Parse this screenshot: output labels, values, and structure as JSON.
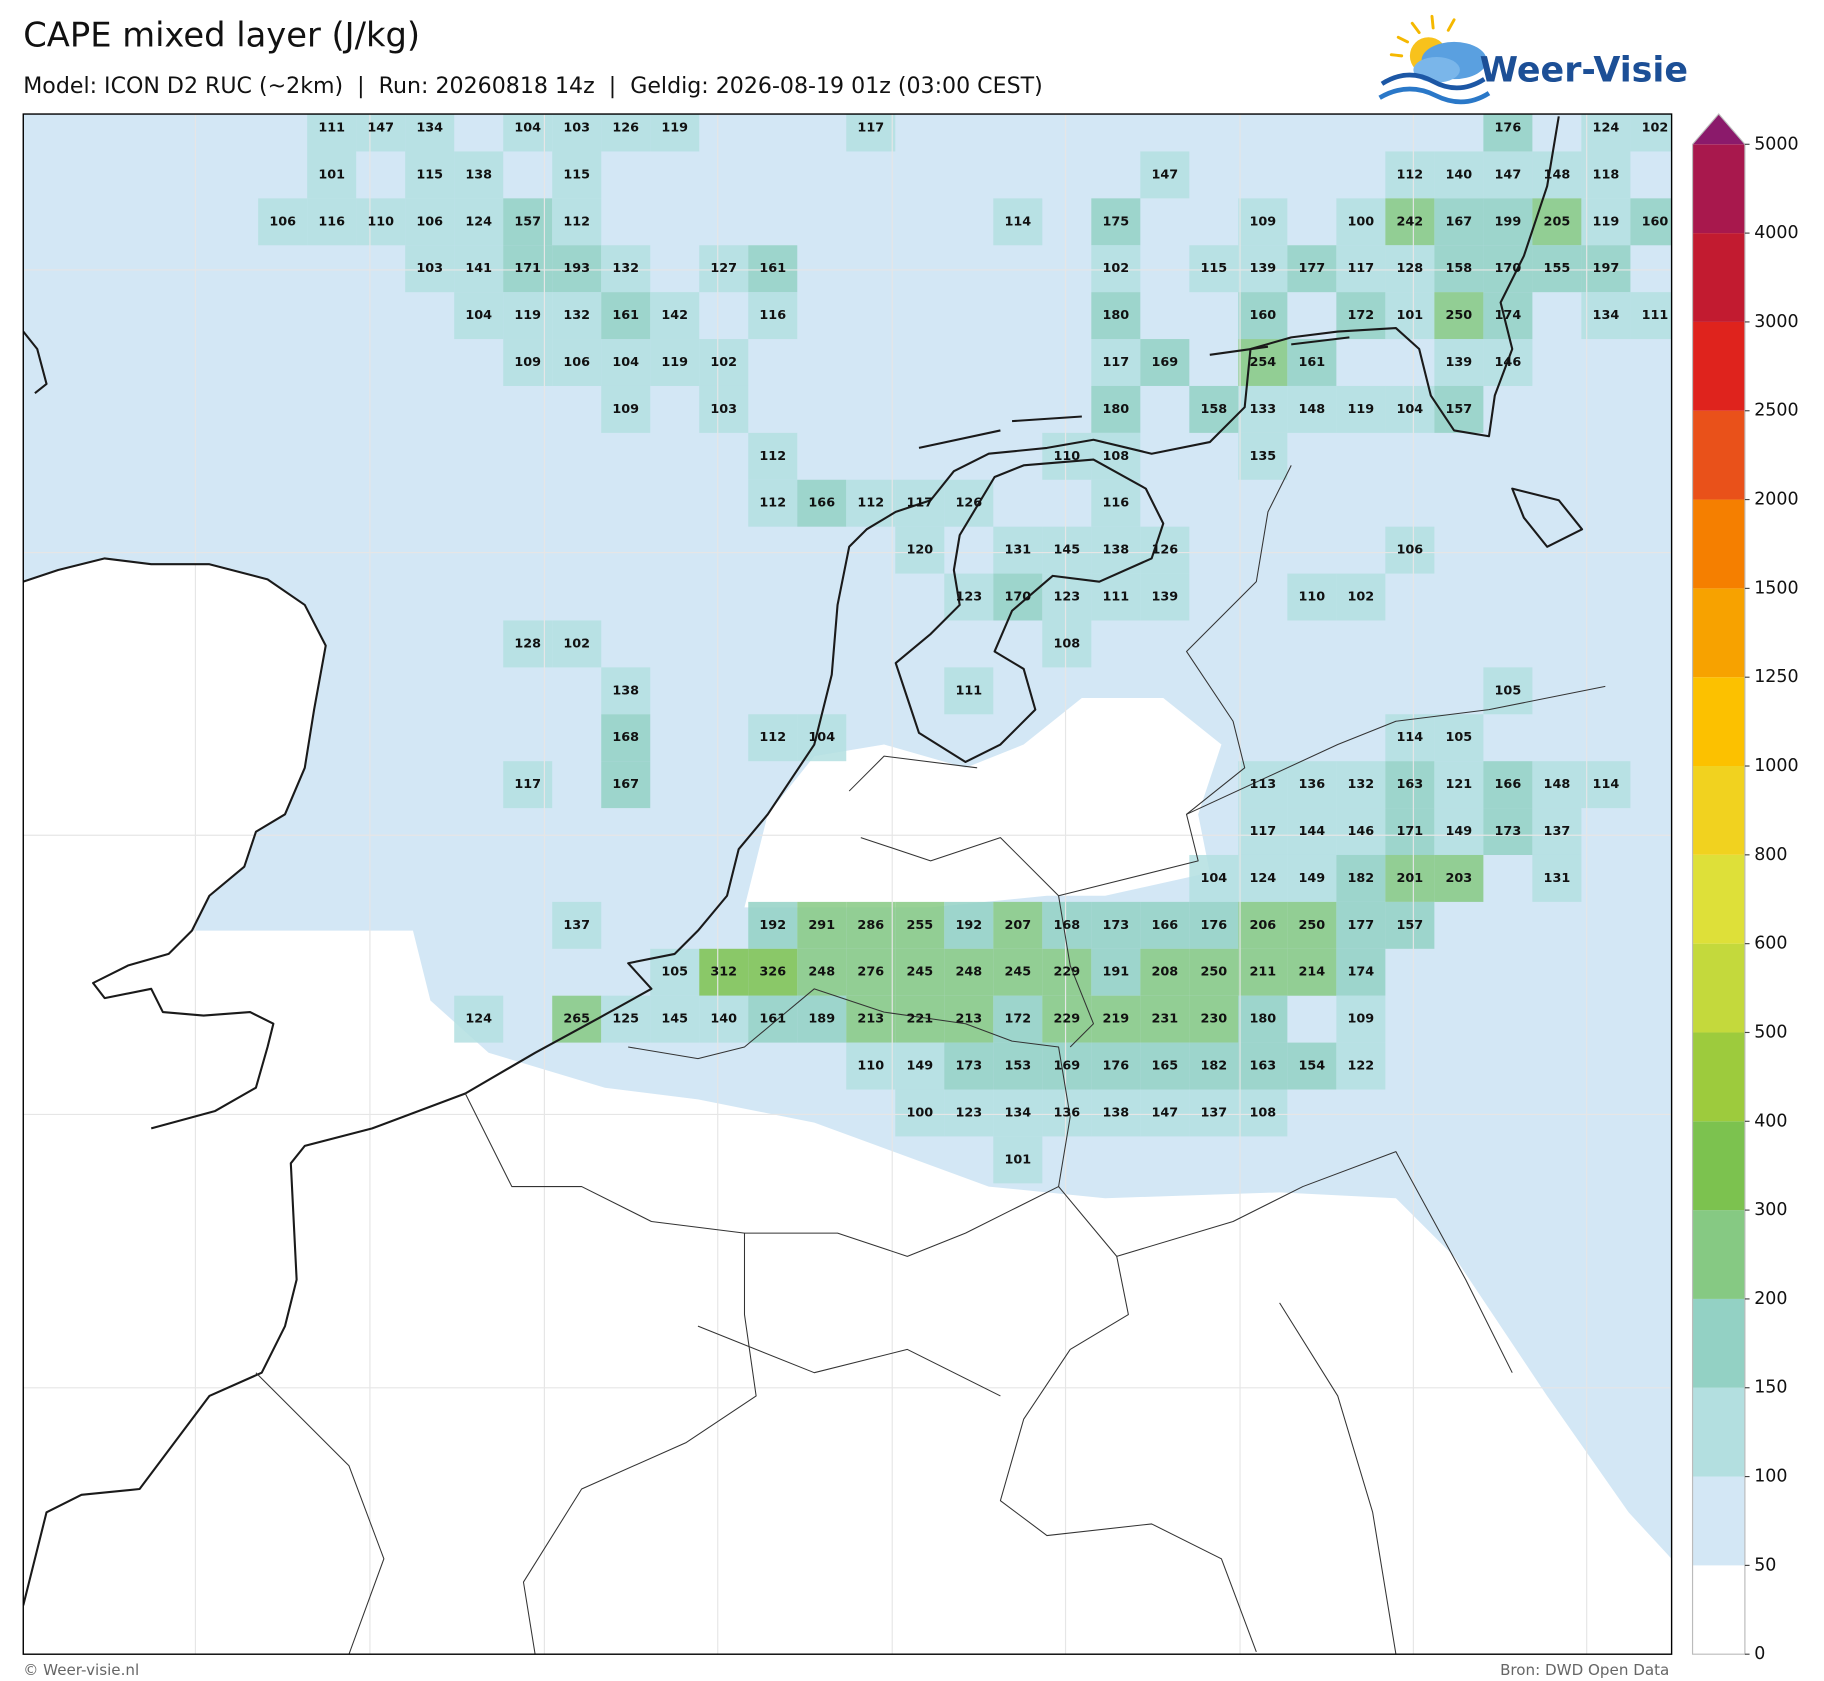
{
  "header": {
    "title": "CAPE mixed layer (J/kg)",
    "subtitle": "Model: ICON D2 RUC (~2km)  |  Run: 20260818 14z  |  Geldig: 2026-08-19 01z (03:00 CEST)"
  },
  "logo": "Weer-Visie",
  "colorbar": {
    "levels": [
      0,
      50,
      100,
      150,
      200,
      300,
      400,
      500,
      600,
      800,
      1000,
      1250,
      1500,
      2000,
      2500,
      3000,
      4000,
      5000
    ],
    "colors": [
      "#ffffff",
      "#d3e7f5",
      "#b3dfe0",
      "#93d1c4",
      "#86c983",
      "#7cc24f",
      "#9dcb3d",
      "#c4d93c",
      "#dee039",
      "#f1d21f",
      "#fcc100",
      "#f7a200",
      "#f57f00",
      "#e9511a",
      "#df231d",
      "#c21b30",
      "#a8184d"
    ],
    "extend_color": "#8b1a6b"
  },
  "map": {
    "grid": [
      [
        null,
        111,
        147,
        134,
        null,
        104,
        103,
        126,
        119,
        null,
        null,
        null,
        117,
        null,
        null,
        null,
        null,
        null,
        null,
        null,
        null,
        null,
        null,
        null,
        null,
        176,
        null,
        124,
        102
      ],
      [
        null,
        101,
        null,
        115,
        138,
        null,
        115,
        null,
        null,
        null,
        null,
        null,
        null,
        null,
        null,
        null,
        null,
        null,
        147,
        null,
        null,
        null,
        null,
        112,
        140,
        147,
        148,
        118,
        null
      ],
      [
        106,
        116,
        110,
        106,
        124,
        157,
        112,
        null,
        null,
        null,
        null,
        null,
        null,
        null,
        null,
        114,
        null,
        175,
        null,
        null,
        109,
        null,
        100,
        242,
        167,
        199,
        205,
        119,
        160
      ],
      [
        null,
        null,
        null,
        103,
        141,
        171,
        193,
        132,
        null,
        127,
        161,
        null,
        null,
        null,
        null,
        null,
        null,
        102,
        null,
        115,
        139,
        177,
        117,
        128,
        158,
        170,
        155,
        197,
        null
      ],
      [
        null,
        null,
        null,
        null,
        104,
        119,
        132,
        161,
        142,
        null,
        116,
        null,
        null,
        null,
        null,
        null,
        null,
        180,
        null,
        null,
        160,
        null,
        172,
        101,
        250,
        174,
        null,
        134,
        111
      ],
      [
        null,
        null,
        null,
        null,
        null,
        109,
        106,
        104,
        119,
        102,
        null,
        null,
        null,
        null,
        null,
        null,
        null,
        117,
        169,
        null,
        254,
        161,
        null,
        null,
        139,
        146,
        null,
        null,
        null
      ],
      [
        null,
        null,
        null,
        null,
        null,
        null,
        null,
        109,
        null,
        103,
        null,
        null,
        null,
        null,
        null,
        null,
        null,
        180,
        null,
        158,
        133,
        148,
        119,
        104,
        157,
        null,
        null,
        null,
        null
      ],
      [
        null,
        null,
        null,
        null,
        null,
        null,
        null,
        null,
        null,
        null,
        112,
        null,
        null,
        null,
        null,
        null,
        110,
        108,
        null,
        null,
        135,
        null,
        null,
        null,
        null,
        null,
        null,
        null,
        null
      ],
      [
        null,
        null,
        null,
        null,
        null,
        null,
        null,
        null,
        null,
        null,
        112,
        166,
        112,
        117,
        126,
        null,
        null,
        116,
        null,
        null,
        null,
        null,
        null,
        null,
        null,
        null,
        null,
        null,
        null
      ],
      [
        null,
        null,
        null,
        null,
        null,
        null,
        null,
        null,
        null,
        null,
        null,
        null,
        null,
        120,
        null,
        131,
        145,
        138,
        126,
        null,
        null,
        null,
        null,
        106,
        null,
        null,
        null,
        null,
        null
      ],
      [
        null,
        null,
        null,
        null,
        null,
        null,
        null,
        null,
        null,
        null,
        null,
        null,
        null,
        null,
        123,
        170,
        123,
        111,
        139,
        null,
        null,
        110,
        102,
        null,
        null,
        null,
        null,
        null,
        null
      ],
      [
        null,
        null,
        null,
        null,
        null,
        128,
        102,
        null,
        null,
        null,
        null,
        null,
        null,
        null,
        null,
        null,
        108,
        null,
        null,
        null,
        null,
        null,
        null,
        null,
        null,
        null,
        null,
        null,
        null
      ],
      [
        null,
        null,
        null,
        null,
        null,
        null,
        null,
        138,
        null,
        null,
        null,
        null,
        null,
        null,
        111,
        null,
        null,
        null,
        null,
        null,
        null,
        null,
        null,
        null,
        null,
        105,
        null,
        null,
        null
      ],
      [
        null,
        null,
        null,
        null,
        null,
        null,
        null,
        168,
        null,
        null,
        112,
        104,
        null,
        null,
        null,
        null,
        null,
        null,
        null,
        null,
        null,
        null,
        null,
        114,
        105,
        null,
        null,
        null,
        null
      ],
      [
        null,
        null,
        null,
        null,
        null,
        117,
        null,
        167,
        null,
        null,
        null,
        null,
        null,
        null,
        null,
        null,
        null,
        null,
        null,
        null,
        113,
        136,
        132,
        163,
        121,
        166,
        148,
        114,
        null
      ],
      [
        null,
        null,
        null,
        null,
        null,
        null,
        null,
        null,
        null,
        null,
        null,
        null,
        null,
        null,
        null,
        null,
        null,
        null,
        null,
        null,
        117,
        144,
        146,
        171,
        149,
        173,
        137,
        null,
        null
      ],
      [
        null,
        null,
        null,
        null,
        null,
        null,
        null,
        null,
        null,
        null,
        null,
        null,
        null,
        null,
        null,
        null,
        null,
        null,
        null,
        104,
        124,
        149,
        182,
        201,
        203,
        null,
        131,
        null,
        null
      ],
      [
        null,
        null,
        null,
        null,
        null,
        null,
        137,
        null,
        null,
        null,
        192,
        291,
        286,
        255,
        192,
        207,
        168,
        173,
        166,
        176,
        206,
        250,
        177,
        157,
        null,
        null,
        null,
        null,
        null
      ],
      [
        null,
        null,
        null,
        null,
        null,
        null,
        null,
        null,
        105,
        312,
        326,
        248,
        276,
        245,
        248,
        245,
        229,
        191,
        208,
        250,
        211,
        214,
        174,
        null,
        null,
        null,
        null,
        null,
        null
      ],
      [
        null,
        null,
        null,
        null,
        124,
        null,
        265,
        125,
        145,
        140,
        161,
        189,
        213,
        221,
        213,
        172,
        229,
        219,
        231,
        230,
        180,
        null,
        109,
        null,
        null,
        null,
        null,
        null,
        null
      ],
      [
        null,
        null,
        null,
        null,
        null,
        null,
        null,
        null,
        null,
        null,
        null,
        null,
        110,
        149,
        173,
        153,
        169,
        176,
        165,
        182,
        163,
        154,
        122,
        null,
        null,
        null,
        null,
        null,
        null
      ],
      [
        null,
        null,
        null,
        null,
        null,
        null,
        null,
        null,
        null,
        null,
        null,
        null,
        null,
        100,
        123,
        134,
        136,
        138,
        147,
        137,
        108,
        null,
        null,
        null,
        null,
        null,
        null,
        null,
        null
      ],
      [
        null,
        null,
        null,
        null,
        null,
        null,
        null,
        null,
        null,
        null,
        null,
        null,
        null,
        null,
        null,
        101,
        null,
        null,
        null,
        null,
        null,
        null,
        null,
        null,
        null,
        null,
        null,
        null,
        null
      ]
    ]
  },
  "footer": {
    "left": "© Weer-visie.nl",
    "right": "Bron: DWD Open Data"
  }
}
